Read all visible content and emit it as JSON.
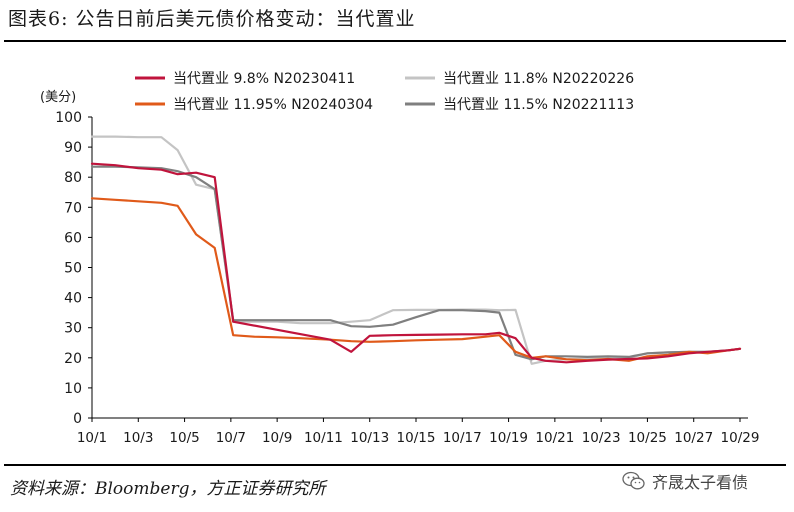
{
  "header": {
    "title": "图表6:  公告日前后美元债价格变动：当代置业"
  },
  "footer": {
    "source": "资料来源：Bloomberg，方正证券研究所",
    "watermark": "齐晟太子看债"
  },
  "icons": {
    "watermark": "wechat-icon"
  },
  "chart_data": {
    "type": "line",
    "title": "",
    "xlabel": "",
    "ylabel": "(美分)",
    "ylim": [
      0,
      100
    ],
    "yticks": [
      0,
      10,
      20,
      30,
      40,
      50,
      60,
      70,
      80,
      90,
      100
    ],
    "xlim": [
      0,
      28
    ],
    "xticks": [
      {
        "pos": 0,
        "label": "10/1"
      },
      {
        "pos": 2,
        "label": "10/3"
      },
      {
        "pos": 4,
        "label": "10/5"
      },
      {
        "pos": 6,
        "label": "10/7"
      },
      {
        "pos": 8,
        "label": "10/9"
      },
      {
        "pos": 10,
        "label": "10/11"
      },
      {
        "pos": 12,
        "label": "10/13"
      },
      {
        "pos": 14,
        "label": "10/15"
      },
      {
        "pos": 16,
        "label": "10/17"
      },
      {
        "pos": 18,
        "label": "10/19"
      },
      {
        "pos": 20,
        "label": "10/21"
      },
      {
        "pos": 22,
        "label": "10/23"
      },
      {
        "pos": 24,
        "label": "10/25"
      },
      {
        "pos": 26,
        "label": "10/27"
      },
      {
        "pos": 28,
        "label": "10/29"
      }
    ],
    "grid": false,
    "legend_position": "top",
    "series": [
      {
        "name": "当代置业 9.8% N20230411",
        "color": "#c0143c",
        "x": [
          0,
          1,
          2,
          3,
          3.7,
          4.5,
          5.3,
          6.1,
          10.3,
          11.2,
          12,
          13,
          14,
          15,
          16,
          17,
          17.6,
          18.3,
          19,
          19.6,
          20.5,
          21.4,
          22.3,
          23.2,
          24,
          24.9,
          25.8,
          26.6,
          27.5,
          28
        ],
        "y": [
          84.5,
          84,
          83,
          82.5,
          81,
          81.5,
          80,
          32,
          26,
          22,
          27.3,
          27.5,
          27.6,
          27.7,
          27.8,
          27.8,
          28.3,
          26.5,
          20,
          19,
          18.5,
          19,
          19.4,
          19.6,
          19.8,
          20.5,
          21.5,
          22,
          22.5,
          23
        ]
      },
      {
        "name": "当代置业 11.8% N20220226",
        "color": "#c4c4c4",
        "x": [
          0,
          1,
          2,
          3,
          3.7,
          4.5,
          5.3,
          6.1,
          7,
          8,
          9,
          10.3,
          11.2,
          12,
          13,
          14,
          15,
          16,
          17,
          17.6,
          18.3,
          19,
          19.6,
          20.5,
          21.4,
          22.3,
          23.2,
          24,
          24.9,
          25.8,
          26.6,
          27.5,
          28
        ],
        "y": [
          93.5,
          93.5,
          93.3,
          93.3,
          89,
          77.5,
          76,
          32,
          32,
          32,
          31.5,
          31.5,
          32,
          32.5,
          35.8,
          35.9,
          35.9,
          36,
          36,
          35.8,
          35.9,
          18,
          19,
          19.5,
          19.6,
          19.8,
          20,
          21.5,
          21.8,
          22,
          22,
          22.5,
          23
        ]
      },
      {
        "name": "当代置业 11.95% N20240304",
        "color": "#e05a1a",
        "x": [
          0,
          1,
          2,
          3,
          3.7,
          4.5,
          5.3,
          6.1,
          7,
          8,
          9,
          10.3,
          11.2,
          12,
          13,
          14,
          15,
          16,
          17,
          17.6,
          18.3,
          19,
          19.6,
          20.5,
          21.4,
          22.3,
          23.2,
          24,
          24.9,
          25.8,
          26.6,
          27.5,
          28
        ],
        "y": [
          73,
          72.5,
          72,
          71.5,
          70.5,
          61,
          56.5,
          27.5,
          27,
          26.8,
          26.5,
          26,
          25.5,
          25.3,
          25.5,
          25.8,
          26,
          26.2,
          27,
          27.5,
          22,
          20,
          20.5,
          19.5,
          19.2,
          19.6,
          19,
          20.5,
          21,
          22,
          21.5,
          22.5,
          23
        ]
      },
      {
        "name": "当代置业 11.5% N20221113",
        "color": "#7f7f7f",
        "x": [
          0,
          1,
          2,
          3,
          3.7,
          4.5,
          5.3,
          6.1,
          7,
          8,
          9,
          10.3,
          11.2,
          12,
          13,
          14,
          15,
          16,
          17,
          17.6,
          18.3,
          19,
          19.6,
          20.5,
          21.4,
          22.3,
          23.2,
          24,
          24.9,
          25.8,
          26.6,
          27.5,
          28
        ],
        "y": [
          83.5,
          83.5,
          83.3,
          83,
          82,
          80,
          76,
          32.5,
          32.5,
          32.5,
          32.5,
          32.5,
          30.5,
          30.3,
          31,
          33.5,
          35.8,
          35.8,
          35.5,
          35,
          21,
          19.5,
          20.5,
          20.5,
          20.3,
          20.5,
          20.3,
          21.5,
          21.8,
          22,
          22,
          22.5,
          23
        ]
      }
    ]
  }
}
